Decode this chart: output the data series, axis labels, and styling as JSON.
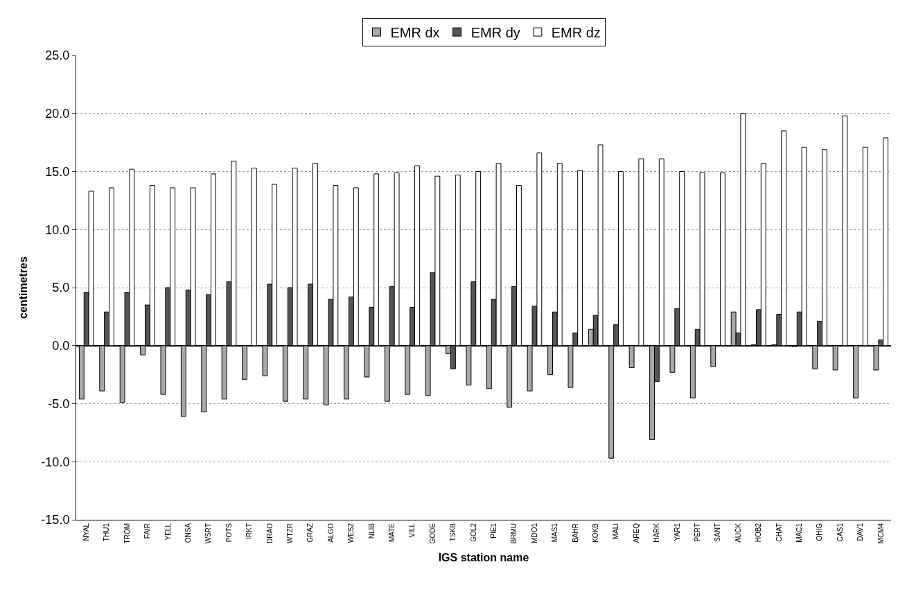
{
  "chart_data": {
    "type": "bar",
    "xlabel": "IGS station name",
    "ylabel": "centimetres",
    "categories": [
      "NYAL",
      "THU1",
      "TROM",
      "FAIR",
      "YELL",
      "ONSA",
      "WSRT",
      "POTS",
      "IRKT",
      "DRAO",
      "WTZR",
      "GRAZ",
      "ALGO",
      "WES2",
      "NLIB",
      "MATE",
      "VILL",
      "GODE",
      "TSKB",
      "GOL2",
      "PIE1",
      "BRMU",
      "MDO1",
      "MAS1",
      "BAHR",
      "KOKB",
      "MALI",
      "AREQ",
      "HARK",
      "YAR1",
      "PERT",
      "SANT",
      "AUCK",
      "HOB2",
      "CHAT",
      "MAC1",
      "OHIG",
      "CAS1",
      "DAV1",
      "MCM4"
    ],
    "series": [
      {
        "name": "EMR dx",
        "color": "#a8a8a8",
        "values": [
          -4.6,
          -3.9,
          -4.9,
          -0.8,
          -4.2,
          -6.1,
          -5.7,
          -4.6,
          -2.9,
          -2.6,
          -4.8,
          -4.6,
          -5.1,
          -4.6,
          -2.7,
          -4.8,
          -4.2,
          -4.3,
          -0.7,
          -3.4,
          -3.7,
          -5.3,
          -3.9,
          -2.5,
          -3.6,
          1.4,
          -9.7,
          -1.9,
          -8.1,
          -2.3,
          -4.5,
          -1.8,
          2.9,
          0.1,
          0.1,
          -0.1,
          -2.0,
          -2.1,
          -4.5,
          -2.1
        ]
      },
      {
        "name": "EMR dy",
        "color": "#555555",
        "values": [
          4.6,
          2.9,
          4.6,
          3.5,
          5.0,
          4.8,
          4.4,
          5.5,
          null,
          5.3,
          5.0,
          5.3,
          4.0,
          4.2,
          3.3,
          5.1,
          3.3,
          6.3,
          -2.0,
          5.5,
          4.0,
          5.1,
          3.4,
          2.9,
          1.1,
          2.6,
          1.8,
          null,
          -3.1,
          3.2,
          1.4,
          null,
          1.1,
          3.1,
          2.7,
          2.9,
          2.1,
          null,
          null,
          0.5
        ]
      },
      {
        "name": "EMR dz",
        "color": "#ffffff",
        "values": [
          13.3,
          13.6,
          15.2,
          13.8,
          13.6,
          13.6,
          14.8,
          15.9,
          15.3,
          13.9,
          15.3,
          15.7,
          13.8,
          13.6,
          14.8,
          14.9,
          15.5,
          14.6,
          14.7,
          15.0,
          15.7,
          13.8,
          16.6,
          15.7,
          15.1,
          17.3,
          15.0,
          16.1,
          16.1,
          15.0,
          14.9,
          14.9,
          20.0,
          15.7,
          18.5,
          17.1,
          16.9,
          19.8,
          17.1,
          17.9
        ]
      }
    ],
    "ylim": [
      -15,
      25
    ],
    "yticks": [
      {
        "value": -15,
        "label": "-15.0"
      },
      {
        "value": -10,
        "label": "-10.0"
      },
      {
        "value": -5,
        "label": "-5.0"
      },
      {
        "value": 0,
        "label": "0.0"
      },
      {
        "value": 5,
        "label": "5.0"
      },
      {
        "value": 10,
        "label": "10.0"
      },
      {
        "value": 15,
        "label": "15.0"
      },
      {
        "value": 20,
        "label": "20.0"
      },
      {
        "value": 25,
        "label": "25.0"
      }
    ],
    "grid": "y",
    "legend": "top"
  }
}
